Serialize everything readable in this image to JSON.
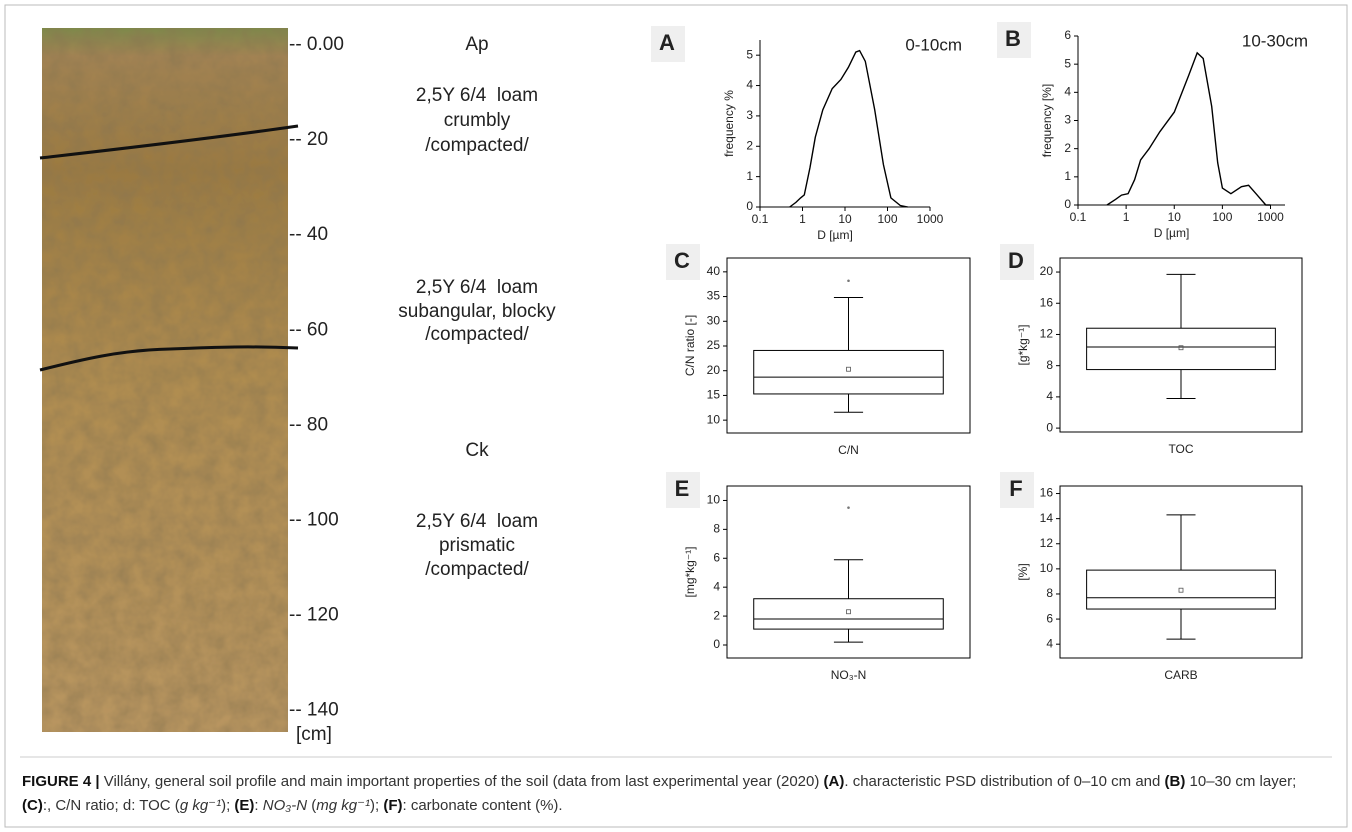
{
  "profile": {
    "depth_labels": [
      "-- 0.00",
      "-- 20",
      "-- 40",
      "-- 60",
      "-- 80",
      "-- 100",
      "-- 120",
      "-- 140"
    ],
    "unit": "[cm]",
    "horizons": [
      [
        "Ap"
      ],
      [
        "2,5Y 6/4  loam",
        "crumbly",
        "/compacted/"
      ],
      [
        "2,5Y 6/4  loam",
        "subangular, blocky",
        "/compacted/"
      ],
      [
        "Ck"
      ],
      [
        "2,5Y 6/4  loam",
        "prismatic",
        "/compacted/"
      ]
    ]
  },
  "chart_data": [
    {
      "type": "line",
      "letter": "A",
      "annotation": "0-10cm",
      "xlabel": "D [µm]",
      "ylabel": "frequency %",
      "color": "#000000",
      "xscale": "log",
      "x": [
        0.5,
        0.7,
        0.9,
        1.1,
        1.5,
        2,
        3,
        5,
        8,
        12,
        18,
        22,
        30,
        50,
        80,
        120,
        200,
        300
      ],
      "values": [
        0,
        0.15,
        0.3,
        0.4,
        1.3,
        2.3,
        3.2,
        3.9,
        4.2,
        4.6,
        5.1,
        5.15,
        4.8,
        3.2,
        1.4,
        0.3,
        0.05,
        0
      ],
      "xlim": [
        0.1,
        1000
      ],
      "xticks": [
        0.1,
        1,
        10,
        100,
        1000
      ],
      "ylim": [
        0,
        5.5
      ],
      "yticks": [
        0,
        1,
        2,
        3,
        4,
        5
      ]
    },
    {
      "type": "line",
      "letter": "B",
      "annotation": "10-30cm",
      "xlabel": "D [µm]",
      "ylabel": "frequency [%]",
      "color": "#000000",
      "xscale": "log",
      "x": [
        0.4,
        0.6,
        0.8,
        1.1,
        1.5,
        2,
        3,
        5,
        10,
        20,
        30,
        40,
        60,
        80,
        100,
        150,
        250,
        350,
        500,
        800,
        1000
      ],
      "values": [
        0,
        0.2,
        0.35,
        0.4,
        0.9,
        1.6,
        2.0,
        2.6,
        3.3,
        4.6,
        5.4,
        5.2,
        3.5,
        1.5,
        0.6,
        0.4,
        0.65,
        0.7,
        0.4,
        0,
        0
      ],
      "xlim": [
        0.1,
        2000
      ],
      "xticks": [
        0.1,
        1,
        10,
        100,
        1000
      ],
      "ylim": [
        0,
        6
      ],
      "yticks": [
        0,
        1,
        2,
        3,
        4,
        5,
        6
      ]
    },
    {
      "type": "box",
      "letter": "C",
      "ylabel": "C/N ratio [-]",
      "categories": [
        "C/N"
      ],
      "whisker_low": [
        11.6
      ],
      "q1": [
        15.3
      ],
      "median": [
        18.7
      ],
      "q3": [
        24.1
      ],
      "whisker_high": [
        34.8
      ],
      "mean": [
        20.3
      ],
      "outliers": [
        [
          38.2
        ]
      ],
      "ylim": [
        7.4,
        42.8
      ],
      "yticks": [
        10,
        15,
        20,
        25,
        30,
        35,
        40
      ]
    },
    {
      "type": "box",
      "letter": "D",
      "ylabel": "[g*kg⁻¹]",
      "categories": [
        "TOC"
      ],
      "whisker_low": [
        3.8
      ],
      "q1": [
        7.5
      ],
      "median": [
        10.4
      ],
      "q3": [
        12.8
      ],
      "whisker_high": [
        19.7
      ],
      "mean": [
        10.3
      ],
      "outliers": [
        []
      ],
      "ylim": [
        -0.5,
        21.8
      ],
      "yticks": [
        0,
        4,
        8,
        12,
        16,
        20
      ]
    },
    {
      "type": "box",
      "letter": "E",
      "ylabel": "[mg*kg⁻¹]",
      "categories": [
        "NO₃-N"
      ],
      "whisker_low": [
        0.2
      ],
      "q1": [
        1.1
      ],
      "median": [
        1.8
      ],
      "q3": [
        3.2
      ],
      "whisker_high": [
        5.9
      ],
      "mean": [
        2.3
      ],
      "outliers": [
        [
          9.5
        ]
      ],
      "ylim": [
        -0.9,
        11
      ],
      "yticks": [
        0,
        2,
        4,
        6,
        8,
        10
      ]
    },
    {
      "type": "box",
      "letter": "F",
      "ylabel": "[%]",
      "categories": [
        "CARB"
      ],
      "whisker_low": [
        4.4
      ],
      "q1": [
        6.8
      ],
      "median": [
        7.7
      ],
      "q3": [
        9.9
      ],
      "whisker_high": [
        14.3
      ],
      "mean": [
        8.3
      ],
      "outliers": [
        []
      ],
      "ylim": [
        2.9,
        16.6
      ],
      "yticks": [
        4,
        6,
        8,
        10,
        12,
        14,
        16
      ]
    }
  ],
  "caption": [
    "FIGURE 4 |",
    " Villány, general soil profile and main important properties of the soil (data from last experimental year (2020) ",
    "(A)",
    ". characteristic PSD distribution of 0–10 cm and ",
    "(B)",
    " 10–30 cm layer; ",
    "(C)",
    ":, C/N ratio; d: TOC (",
    "g kg⁻¹",
    "); ",
    "(E)",
    ": ",
    "NO₃-N",
    " (",
    "mg kg⁻¹",
    "); ",
    "(F)",
    ": carbonate content (%)."
  ]
}
